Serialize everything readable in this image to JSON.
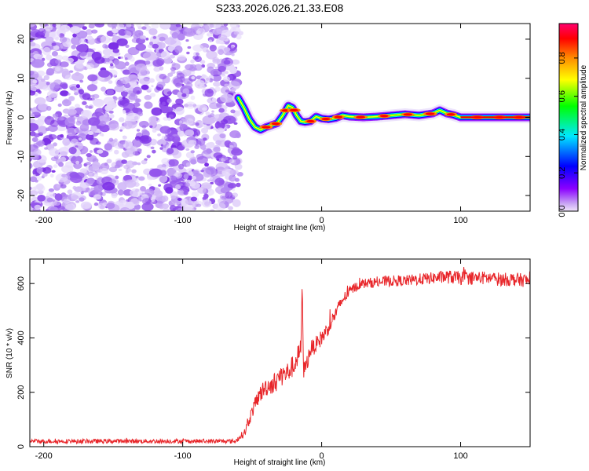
{
  "title": "S233.2026.026.21.33.E08",
  "colors": {
    "snr_line": "#e8262a",
    "noise_dots": [
      "#7b2ee6",
      "#9455ec",
      "#b48af2",
      "#d2b9f7",
      "#e6d9fb"
    ],
    "colormap": [
      "#f0e4fb",
      "#8b00ff",
      "#0000ff",
      "#00e8ff",
      "#00ff00",
      "#ffff00",
      "#ff8800",
      "#ff0000",
      "#ff006e"
    ]
  },
  "chart_data": [
    {
      "type": "heatmap",
      "title": "S233.2026.026.21.33.E08",
      "xlabel": "Height of straight line (km)",
      "ylabel": "Frequency (Hz)",
      "xlim": [
        -210,
        150
      ],
      "ylim": [
        -24,
        24
      ],
      "x_ticks": [
        -200,
        -100,
        0,
        100
      ],
      "x_tick_labels": [
        "-200",
        "-100",
        "0",
        "100"
      ],
      "y_ticks": [
        20,
        10,
        0,
        -10,
        -20
      ],
      "y_tick_labels": [
        "20",
        "10",
        "0",
        "-10",
        "-20"
      ],
      "noise_region_x": [
        -210,
        -60
      ],
      "ridge": {
        "x": [
          -60,
          -56,
          -52,
          -48,
          -44,
          -40,
          -36,
          -32,
          -28,
          -24,
          -21,
          -18,
          -15,
          -12,
          -8,
          -4,
          0,
          5,
          10,
          15,
          20,
          30,
          40,
          50,
          60,
          70,
          80,
          85,
          90,
          95,
          100,
          110,
          120,
          130,
          140,
          150
        ],
        "y": [
          5,
          2.5,
          -0.5,
          -2.5,
          -3.2,
          -2.5,
          -2.0,
          -1.5,
          0.5,
          3.0,
          2.5,
          0.5,
          -1.0,
          -1.2,
          -1.0,
          0.2,
          -0.3,
          -0.5,
          -0.2,
          0.5,
          0.2,
          0.0,
          0.2,
          0.5,
          0.8,
          0.5,
          1.0,
          1.8,
          1.0,
          0.6,
          0.0,
          0.0,
          0.0,
          0.0,
          0.0,
          0.0
        ]
      },
      "colorbar": {
        "label": "Normalized spectral amplitude",
        "range": [
          0,
          0.98
        ],
        "ticks": [
          0.0,
          0.2,
          0.4,
          0.6,
          0.8
        ],
        "tick_labels": [
          "0.0",
          "0.2",
          "0.4",
          "0.6",
          "0.8"
        ]
      }
    },
    {
      "type": "line",
      "xlabel": "Height of straight line (km)",
      "ylabel": "SNR (10 * v/v)",
      "xlim": [
        -210,
        150
      ],
      "ylim": [
        0,
        690
      ],
      "x_ticks": [
        -200,
        -100,
        0,
        100
      ],
      "x_tick_labels": [
        "-200",
        "-100",
        "0",
        "100"
      ],
      "y_ticks": [
        0,
        200,
        400,
        600
      ],
      "y_tick_labels": [
        "0",
        "200",
        "400",
        "600"
      ],
      "series": [
        {
          "name": "SNR",
          "x": [
            -210,
            -150,
            -100,
            -62,
            -55,
            -50,
            -45,
            -40,
            -35,
            -30,
            -25,
            -20,
            -18,
            -15,
            -14,
            -13,
            -12,
            -10,
            -8,
            -5,
            -2,
            0,
            5,
            10,
            15,
            20,
            25,
            30,
            40,
            50,
            60,
            70,
            80,
            90,
            100,
            110,
            120,
            130,
            140,
            150
          ],
          "y": [
            20,
            20,
            20,
            20,
            55,
            130,
            190,
            220,
            230,
            260,
            270,
            300,
            320,
            360,
            600,
            280,
            290,
            320,
            360,
            370,
            390,
            400,
            440,
            490,
            540,
            570,
            590,
            600,
            605,
            610,
            610,
            615,
            620,
            625,
            620,
            620,
            620,
            615,
            615,
            610
          ],
          "noise": [
            8,
            8,
            8,
            8,
            15,
            25,
            30,
            35,
            35,
            40,
            40,
            40,
            40,
            40,
            0,
            30,
            30,
            30,
            30,
            30,
            30,
            30,
            28,
            25,
            22,
            20,
            18,
            18,
            20,
            20,
            20,
            22,
            22,
            25,
            25,
            25,
            25,
            25,
            25,
            25
          ],
          "color": "#e8262a"
        }
      ]
    }
  ]
}
